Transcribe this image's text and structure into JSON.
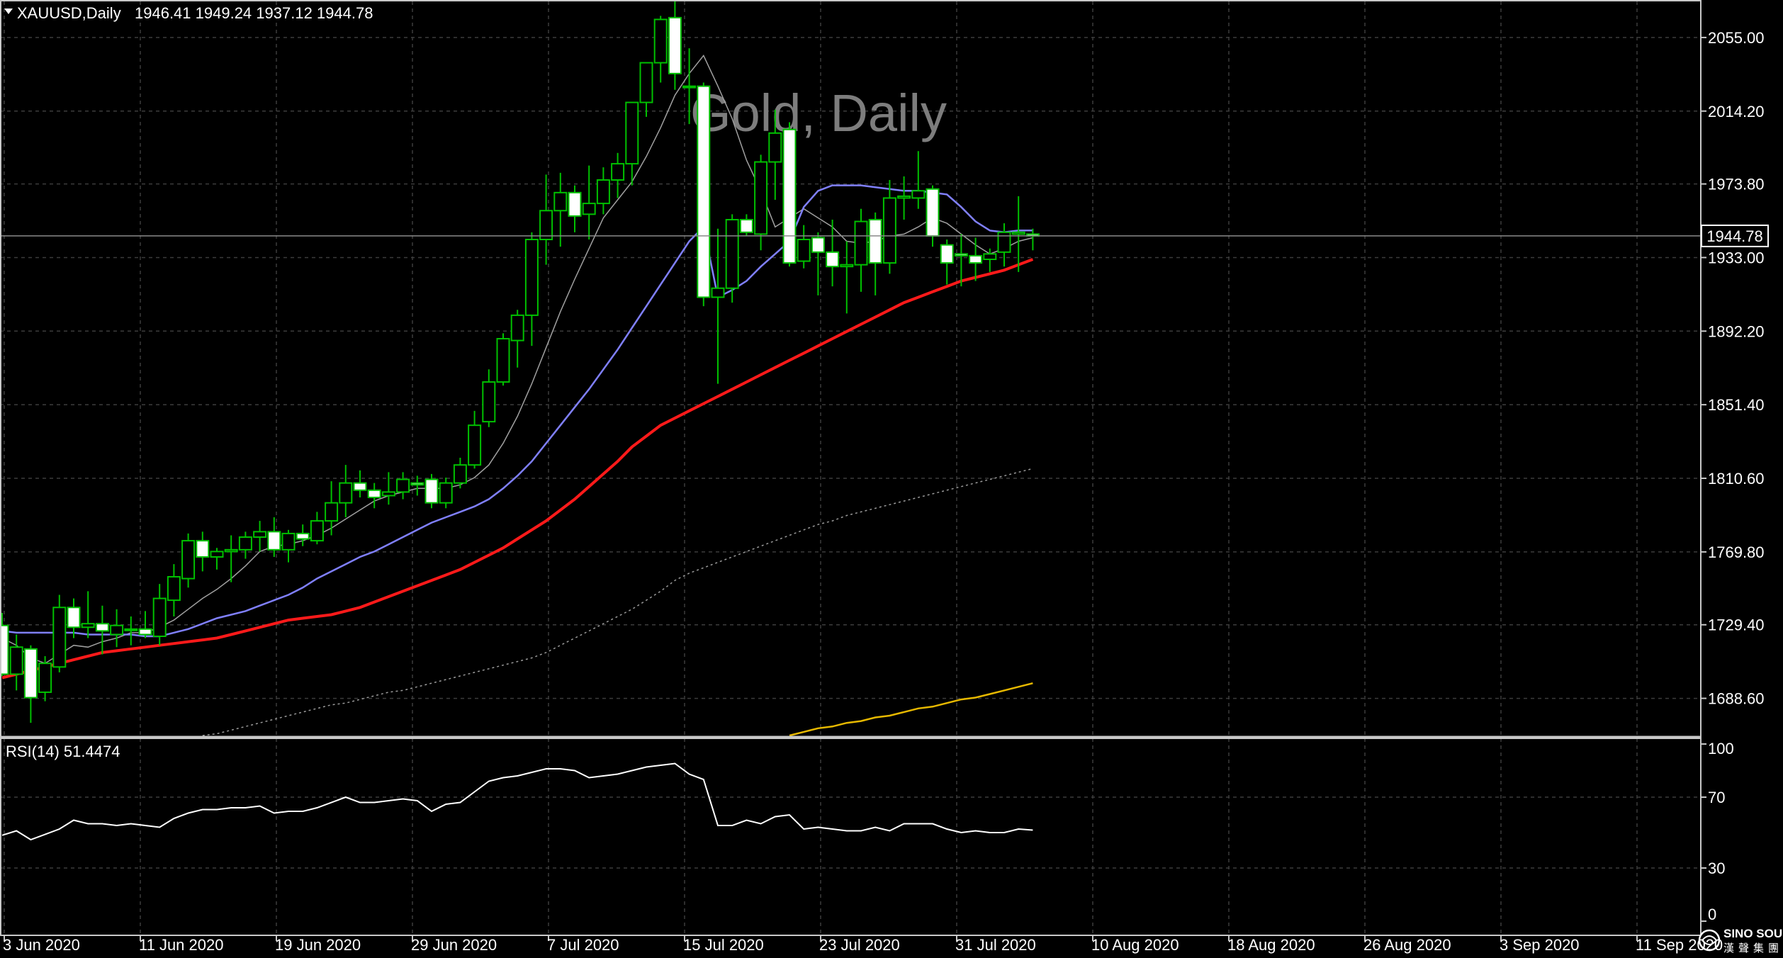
{
  "header": {
    "symbol": "XAUUSD,Daily",
    "ohlc": "1946.41 1949.24 1937.12 1944.78",
    "watermark": "Gold, Daily"
  },
  "price_axis": {
    "ticks": [
      "2055.00",
      "2014.20",
      "1973.80",
      "1933.00",
      "1892.20",
      "1851.40",
      "1810.60",
      "1769.80",
      "1729.40",
      "1688.60"
    ],
    "current_price_label": "1944.78"
  },
  "rsi": {
    "label": "RSI(14) 51.4474",
    "ticks": [
      "100",
      "70",
      "30",
      "0"
    ]
  },
  "time_axis": {
    "labels": [
      "3 Jun 2020",
      "11 Jun 2020",
      "19 Jun 2020",
      "29 Jun 2020",
      "7 Jul 2020",
      "15 Jul 2020",
      "23 Jul 2020",
      "31 Jul 2020",
      "10 Aug 2020",
      "18 Aug 2020",
      "26 Aug 2020",
      "3 Sep 2020",
      "11 Sep 2020"
    ]
  },
  "logo": {
    "text": "SINO SOUND",
    "subtext": "漢聲集團"
  },
  "colors": {
    "background": "#000000",
    "grid": "#3c3c3c",
    "bull_fill": "#000000",
    "bull_line": "#00c000",
    "bear_fill": "#ffffff",
    "ma_fast": "#a0a0a0",
    "ma_mid": "#8080ff",
    "ma_slow": "#ff1a1a",
    "ma_long": "#9a9a9a",
    "ma_longest": "#e6b800",
    "rsi_line": "#ffffff",
    "text": "#ffffff",
    "watermark": "#7d7d7d"
  },
  "chart_data": {
    "type": "candlestick",
    "symbol": "XAUUSD",
    "timeframe": "Daily",
    "ylim": [
      1668,
      2075
    ],
    "rsi_ylim": [
      0,
      100
    ],
    "candles": [
      {
        "o": 1729,
        "h": 1736,
        "l": 1701,
        "c": 1702
      },
      {
        "o": 1702,
        "h": 1724,
        "l": 1693,
        "c": 1717
      },
      {
        "o": 1716,
        "h": 1718,
        "l": 1675,
        "c": 1689
      },
      {
        "o": 1692,
        "h": 1712,
        "l": 1687,
        "c": 1708
      },
      {
        "o": 1706,
        "h": 1746,
        "l": 1703,
        "c": 1739
      },
      {
        "o": 1739,
        "h": 1744,
        "l": 1722,
        "c": 1728
      },
      {
        "o": 1728,
        "h": 1748,
        "l": 1722,
        "c": 1730
      },
      {
        "o": 1730,
        "h": 1740,
        "l": 1713,
        "c": 1726
      },
      {
        "o": 1724,
        "h": 1738,
        "l": 1717,
        "c": 1729
      },
      {
        "o": 1727,
        "h": 1734,
        "l": 1718,
        "c": 1727
      },
      {
        "o": 1727,
        "h": 1737,
        "l": 1722,
        "c": 1724
      },
      {
        "o": 1723,
        "h": 1752,
        "l": 1718,
        "c": 1744
      },
      {
        "o": 1743,
        "h": 1763,
        "l": 1734,
        "c": 1756
      },
      {
        "o": 1755,
        "h": 1780,
        "l": 1750,
        "c": 1776
      },
      {
        "o": 1776,
        "h": 1781,
        "l": 1759,
        "c": 1767
      },
      {
        "o": 1767,
        "h": 1772,
        "l": 1760,
        "c": 1770
      },
      {
        "o": 1770,
        "h": 1779,
        "l": 1753,
        "c": 1771
      },
      {
        "o": 1771,
        "h": 1781,
        "l": 1766,
        "c": 1778
      },
      {
        "o": 1778,
        "h": 1787,
        "l": 1770,
        "c": 1781
      },
      {
        "o": 1781,
        "h": 1789,
        "l": 1767,
        "c": 1771
      },
      {
        "o": 1771,
        "h": 1782,
        "l": 1764,
        "c": 1780
      },
      {
        "o": 1780,
        "h": 1785,
        "l": 1773,
        "c": 1777
      },
      {
        "o": 1776,
        "h": 1792,
        "l": 1774,
        "c": 1787
      },
      {
        "o": 1787,
        "h": 1809,
        "l": 1779,
        "c": 1797
      },
      {
        "o": 1797,
        "h": 1818,
        "l": 1789,
        "c": 1808
      },
      {
        "o": 1808,
        "h": 1815,
        "l": 1800,
        "c": 1804
      },
      {
        "o": 1804,
        "h": 1808,
        "l": 1794,
        "c": 1800
      },
      {
        "o": 1801,
        "h": 1814,
        "l": 1796,
        "c": 1803
      },
      {
        "o": 1803,
        "h": 1814,
        "l": 1799,
        "c": 1810
      },
      {
        "o": 1808,
        "h": 1812,
        "l": 1801,
        "c": 1807
      },
      {
        "o": 1810,
        "h": 1813,
        "l": 1794,
        "c": 1797
      },
      {
        "o": 1797,
        "h": 1811,
        "l": 1794,
        "c": 1808
      },
      {
        "o": 1808,
        "h": 1822,
        "l": 1805,
        "c": 1818
      },
      {
        "o": 1818,
        "h": 1848,
        "l": 1816,
        "c": 1840
      },
      {
        "o": 1842,
        "h": 1871,
        "l": 1839,
        "c": 1864
      },
      {
        "o": 1864,
        "h": 1891,
        "l": 1862,
        "c": 1888
      },
      {
        "o": 1887,
        "h": 1904,
        "l": 1872,
        "c": 1901
      },
      {
        "o": 1901,
        "h": 1947,
        "l": 1884,
        "c": 1943
      },
      {
        "o": 1943,
        "h": 1979,
        "l": 1929,
        "c": 1959
      },
      {
        "o": 1959,
        "h": 1980,
        "l": 1939,
        "c": 1969
      },
      {
        "o": 1969,
        "h": 1973,
        "l": 1947,
        "c": 1956
      },
      {
        "o": 1957,
        "h": 1984,
        "l": 1943,
        "c": 1963
      },
      {
        "o": 1963,
        "h": 1983,
        "l": 1957,
        "c": 1976
      },
      {
        "o": 1976,
        "h": 1991,
        "l": 1966,
        "c": 1985
      },
      {
        "o": 1985,
        "h": 2019,
        "l": 1973,
        "c": 2019
      },
      {
        "o": 2019,
        "h": 2041,
        "l": 2011,
        "c": 2041
      },
      {
        "o": 2041,
        "h": 2067,
        "l": 2030,
        "c": 2065
      },
      {
        "o": 2066,
        "h": 2075,
        "l": 2026,
        "c": 2035
      },
      {
        "o": 2028,
        "h": 2049,
        "l": 2007,
        "c": 2028
      },
      {
        "o": 2028,
        "h": 2030,
        "l": 1906,
        "c": 1911
      },
      {
        "o": 1911,
        "h": 1949,
        "l": 1863,
        "c": 1916
      },
      {
        "o": 1916,
        "h": 1957,
        "l": 1908,
        "c": 1954
      },
      {
        "o": 1954,
        "h": 1957,
        "l": 1945,
        "c": 1947
      },
      {
        "o": 1946,
        "h": 1990,
        "l": 1937,
        "c": 1986
      },
      {
        "o": 1986,
        "h": 2015,
        "l": 1965,
        "c": 2002
      },
      {
        "o": 2004,
        "h": 2008,
        "l": 1928,
        "c": 1930
      },
      {
        "o": 1931,
        "h": 1951,
        "l": 1927,
        "c": 1943
      },
      {
        "o": 1944,
        "h": 1947,
        "l": 1912,
        "c": 1936
      },
      {
        "o": 1936,
        "h": 1954,
        "l": 1917,
        "c": 1928
      },
      {
        "o": 1928,
        "h": 1942,
        "l": 1902,
        "c": 1929
      },
      {
        "o": 1929,
        "h": 1960,
        "l": 1914,
        "c": 1953
      },
      {
        "o": 1954,
        "h": 1958,
        "l": 1912,
        "c": 1930
      },
      {
        "o": 1930,
        "h": 1976,
        "l": 1924,
        "c": 1966
      },
      {
        "o": 1966,
        "h": 1978,
        "l": 1954,
        "c": 1967
      },
      {
        "o": 1966,
        "h": 1992,
        "l": 1960,
        "c": 1970
      },
      {
        "o": 1971,
        "h": 1973,
        "l": 1939,
        "c": 1945
      },
      {
        "o": 1940,
        "h": 1943,
        "l": 1918,
        "c": 1930
      },
      {
        "o": 1935,
        "h": 1946,
        "l": 1917,
        "c": 1934
      },
      {
        "o": 1934,
        "h": 1944,
        "l": 1920,
        "c": 1930
      },
      {
        "o": 1932,
        "h": 1938,
        "l": 1925,
        "c": 1935
      },
      {
        "o": 1936,
        "h": 1952,
        "l": 1928,
        "c": 1947
      },
      {
        "o": 1946,
        "h": 1967,
        "l": 1925,
        "c": 1947
      },
      {
        "o": 1946,
        "h": 1949,
        "l": 1937,
        "c": 1945
      }
    ],
    "rsi_values": [
      48.5,
      51,
      46,
      49,
      52,
      57,
      55,
      55,
      54,
      55,
      54,
      53,
      58,
      61,
      63,
      63,
      64,
      64,
      65,
      61,
      62,
      62,
      64,
      67,
      70,
      67,
      67,
      68,
      69,
      68,
      62,
      66,
      67,
      73,
      79,
      81,
      82,
      84,
      86,
      86,
      85,
      81,
      82,
      83,
      85,
      87,
      88,
      89,
      83,
      80,
      54,
      54,
      57,
      55,
      59,
      60,
      52,
      53,
      52,
      51,
      51,
      53,
      51,
      55,
      55,
      55,
      52,
      50,
      51,
      50,
      50,
      52,
      51.4
    ],
    "ma_series": [
      {
        "period_label": "fast",
        "values": [
          1722,
          1718,
          1711,
          1708,
          1713,
          1718,
          1717,
          1720,
          1722,
          1725,
          1725,
          1728,
          1732,
          1738,
          1744,
          1749,
          1755,
          1762,
          1770,
          1773,
          1774,
          1776,
          1779,
          1783,
          1788,
          1793,
          1798,
          1801,
          1803,
          1805,
          1805,
          1805,
          1807,
          1811,
          1818,
          1830,
          1845,
          1863,
          1883,
          1903,
          1921,
          1938,
          1955,
          1965,
          1975,
          1989,
          2005,
          2023,
          2035,
          2045,
          2028,
          2010,
          1987,
          1970,
          1950,
          1955,
          1960,
          1955,
          1950,
          1942,
          1941,
          1942,
          1945,
          1946,
          1950,
          1955,
          1952,
          1946,
          1940,
          1935,
          1938,
          1942,
          1944
        ]
      },
      {
        "period_label": "mid",
        "values": [
          1726,
          1725,
          1725,
          1725,
          1725,
          1725,
          1724,
          1724,
          1724,
          1724,
          1723,
          1723,
          1725,
          1727,
          1730,
          1733,
          1735,
          1737,
          1740,
          1743,
          1746,
          1750,
          1755,
          1759,
          1763,
          1767,
          1770,
          1774,
          1778,
          1782,
          1786,
          1789,
          1792,
          1795,
          1799,
          1805,
          1812,
          1820,
          1830,
          1840,
          1850,
          1860,
          1871,
          1882,
          1894,
          1906,
          1918,
          1930,
          1942,
          1950,
          1911,
          1915,
          1920,
          1928,
          1935,
          1942,
          1961,
          1970,
          1973,
          1973,
          1973,
          1972,
          1971,
          1970,
          1970,
          1969,
          1968,
          1961,
          1953,
          1948,
          1947,
          1948,
          1948
        ]
      },
      {
        "period_label": "slow",
        "values": [
          1700,
          1702,
          1704,
          1706,
          1708,
          1710,
          1712,
          1714,
          1715,
          1716,
          1717,
          1718,
          1719,
          1720,
          1721,
          1722,
          1724,
          1726,
          1728,
          1730,
          1732,
          1733,
          1734,
          1735,
          1737,
          1739,
          1742,
          1745,
          1748,
          1751,
          1754,
          1757,
          1760,
          1764,
          1768,
          1772,
          1777,
          1782,
          1787,
          1793,
          1799,
          1806,
          1813,
          1820,
          1828,
          1834,
          1840,
          1844,
          1848,
          1852,
          1856,
          1860,
          1864,
          1868,
          1872,
          1876,
          1880,
          1884,
          1888,
          1892,
          1896,
          1900,
          1904,
          1908,
          1911,
          1914,
          1917,
          1920,
          1922,
          1924,
          1926,
          1929,
          1932
        ]
      },
      {
        "period_label": "long",
        "values": [
          null,
          null,
          null,
          null,
          null,
          null,
          null,
          null,
          null,
          null,
          null,
          null,
          null,
          null,
          1668,
          1669,
          1671,
          1673,
          1675,
          1677,
          1679,
          1681,
          1683,
          1685,
          1686,
          1688,
          1690,
          1692,
          1693,
          1695,
          1697,
          1699,
          1701,
          1703,
          1705,
          1707,
          1709,
          1711,
          1714,
          1718,
          1722,
          1726,
          1730,
          1734,
          1738,
          1743,
          1748,
          1754,
          1758,
          1761,
          1764,
          1767,
          1770,
          1773,
          1776,
          1779,
          1782,
          1785,
          1787,
          1790,
          1792,
          1794,
          1796,
          1798,
          1800,
          1802,
          1804,
          1806,
          1808,
          1810,
          1812,
          1814,
          1816
        ]
      },
      {
        "period_label": "longest",
        "values": [
          null,
          null,
          null,
          null,
          null,
          null,
          null,
          null,
          null,
          null,
          null,
          null,
          null,
          null,
          null,
          null,
          null,
          null,
          null,
          null,
          null,
          null,
          null,
          null,
          null,
          null,
          null,
          null,
          null,
          null,
          null,
          null,
          null,
          null,
          null,
          null,
          null,
          null,
          null,
          null,
          null,
          null,
          null,
          null,
          null,
          null,
          null,
          null,
          null,
          null,
          null,
          null,
          null,
          null,
          null,
          1668,
          1670,
          1672,
          1673,
          1675,
          1676,
          1678,
          1679,
          1681,
          1683,
          1684,
          1686,
          1688,
          1689,
          1691,
          1693,
          1695,
          1697
        ]
      }
    ]
  }
}
